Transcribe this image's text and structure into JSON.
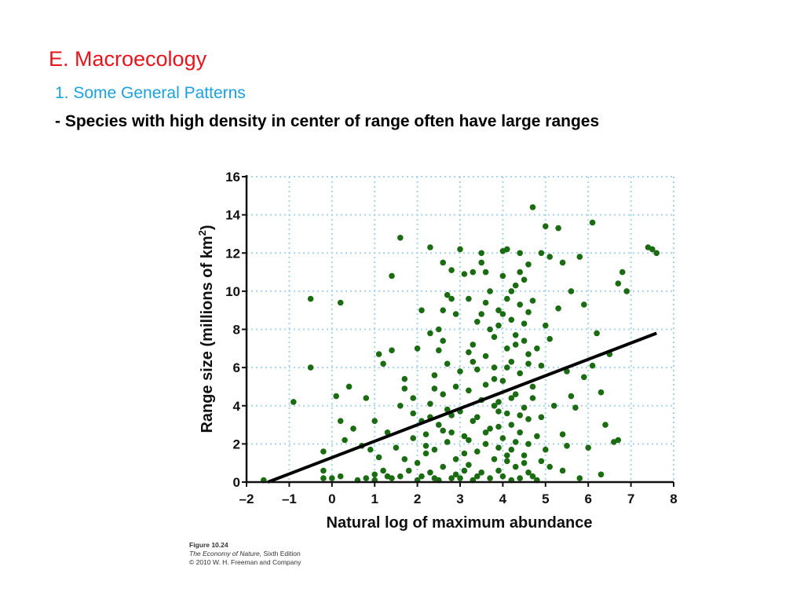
{
  "slide": {
    "title": "E. Macroecology",
    "subtitle": "1. Some General Patterns",
    "bullet": "- Species with high density in center of range often have large ranges"
  },
  "caption": {
    "figure": "Figure 10.24",
    "book": "The Economy of Nature,",
    "edition": " Sixth Edition",
    "copyright": "© 2010 W. H. Freeman and Company"
  },
  "colors": {
    "title": "#e8141b",
    "subtitle": "#1ba1dd",
    "points": "#1a6b12",
    "grid": "#a9d3ec",
    "regression": "#000000"
  },
  "chart_data": {
    "type": "scatter",
    "xlabel": "Natural log of maximum abundance",
    "ylabel": "Range size (millions of km",
    "ylabel_sup": "2",
    "ylabel_end": ")",
    "xlim": [
      -2,
      8
    ],
    "ylim": [
      0,
      16
    ],
    "xticks": [
      -2,
      -1,
      0,
      1,
      2,
      3,
      4,
      5,
      6,
      7,
      8
    ],
    "xtick_labels": [
      "–2",
      "–1",
      "0",
      "1",
      "2",
      "3",
      "4",
      "5",
      "6",
      "7",
      "8"
    ],
    "yticks": [
      0,
      2,
      4,
      6,
      8,
      10,
      12,
      14,
      16
    ],
    "ytick_labels": [
      "0",
      "2",
      "4",
      "6",
      "8",
      "10",
      "12",
      "14",
      "16"
    ],
    "grid": true,
    "regression_line": {
      "x": [
        -1.5,
        7.6
      ],
      "y": [
        0.0,
        7.8
      ]
    },
    "points": [
      [
        -1.6,
        0.1
      ],
      [
        -0.9,
        4.2
      ],
      [
        -0.5,
        9.6
      ],
      [
        -0.5,
        6.0
      ],
      [
        -0.2,
        1.6
      ],
      [
        0.1,
        4.5
      ],
      [
        0.2,
        9.4
      ],
      [
        0.2,
        3.2
      ],
      [
        -0.2,
        0.6
      ],
      [
        -0.2,
        0.2
      ],
      [
        0.4,
        5.0
      ],
      [
        0.5,
        2.8
      ],
      [
        0.8,
        4.4
      ],
      [
        0.9,
        1.7
      ],
      [
        1.0,
        0.4
      ],
      [
        1.1,
        6.7
      ],
      [
        1.2,
        6.2
      ],
      [
        1.3,
        0.3
      ],
      [
        1.4,
        6.9
      ],
      [
        1.4,
        10.8
      ],
      [
        1.6,
        12.8
      ],
      [
        1.7,
        4.9
      ],
      [
        1.9,
        4.4
      ],
      [
        2.0,
        7.0
      ],
      [
        2.1,
        9.0
      ],
      [
        2.3,
        12.3
      ],
      [
        2.5,
        8.0
      ],
      [
        2.6,
        11.5
      ],
      [
        2.7,
        9.8
      ],
      [
        2.8,
        11.1
      ],
      [
        3.0,
        12.2
      ],
      [
        3.1,
        10.9
      ],
      [
        3.2,
        9.6
      ],
      [
        3.3,
        6.3
      ],
      [
        3.5,
        11.5
      ],
      [
        3.6,
        11.0
      ],
      [
        4.0,
        12.1
      ],
      [
        4.4,
        12.0
      ],
      [
        4.6,
        11.4
      ],
      [
        4.7,
        14.4
      ],
      [
        4.9,
        12.0
      ],
      [
        5.0,
        13.4
      ],
      [
        5.1,
        11.8
      ],
      [
        5.3,
        13.3
      ],
      [
        5.4,
        11.5
      ],
      [
        5.6,
        10.0
      ],
      [
        5.8,
        11.8
      ],
      [
        6.1,
        13.6
      ],
      [
        6.2,
        7.8
      ],
      [
        6.3,
        4.7
      ],
      [
        6.5,
        6.7
      ],
      [
        6.7,
        10.4
      ],
      [
        6.8,
        11.0
      ],
      [
        6.9,
        10.0
      ],
      [
        7.4,
        12.3
      ],
      [
        7.5,
        12.2
      ],
      [
        7.6,
        12.0
      ],
      [
        6.3,
        0.4
      ],
      [
        6.7,
        2.2
      ],
      [
        5.8,
        0.2
      ],
      [
        5.5,
        1.9
      ],
      [
        6.0,
        1.8
      ],
      [
        6.4,
        3.0
      ],
      [
        6.6,
        2.1
      ],
      [
        5.9,
        5.5
      ],
      [
        5.0,
        8.2
      ],
      [
        5.1,
        7.5
      ],
      [
        5.3,
        9.1
      ],
      [
        5.6,
        4.5
      ],
      [
        5.2,
        4.0
      ],
      [
        5.5,
        5.8
      ],
      [
        5.9,
        9.3
      ],
      [
        5.4,
        2.5
      ],
      [
        5.7,
        3.9
      ],
      [
        5.4,
        0.6
      ],
      [
        5.1,
        0.8
      ],
      [
        6.1,
        6.1
      ],
      [
        4.3,
        10.3
      ],
      [
        4.5,
        10.6
      ],
      [
        4.1,
        9.6
      ],
      [
        4.4,
        9.3
      ],
      [
        4.0,
        8.8
      ],
      [
        4.2,
        8.5
      ],
      [
        4.6,
        8.9
      ],
      [
        3.9,
        9.0
      ],
      [
        4.3,
        7.7
      ],
      [
        4.5,
        7.4
      ],
      [
        4.1,
        7.0
      ],
      [
        4.6,
        6.7
      ],
      [
        4.2,
        6.3
      ],
      [
        3.8,
        6.0
      ],
      [
        4.4,
        5.7
      ],
      [
        4.0,
        5.3
      ],
      [
        4.7,
        5.0
      ],
      [
        4.3,
        4.6
      ],
      [
        3.9,
        4.2
      ],
      [
        4.5,
        3.9
      ],
      [
        4.1,
        3.6
      ],
      [
        4.6,
        3.3
      ],
      [
        4.2,
        3.0
      ],
      [
        4.4,
        2.6
      ],
      [
        4.0,
        2.3
      ],
      [
        4.6,
        2.0
      ],
      [
        4.2,
        1.7
      ],
      [
        4.5,
        1.4
      ],
      [
        4.1,
        1.1
      ],
      [
        4.3,
        0.8
      ],
      [
        4.6,
        0.5
      ],
      [
        4.0,
        0.3
      ],
      [
        3.5,
        8.8
      ],
      [
        3.7,
        8.0
      ],
      [
        3.3,
        7.2
      ],
      [
        3.6,
        6.6
      ],
      [
        3.4,
        5.9
      ],
      [
        3.8,
        5.4
      ],
      [
        3.2,
        4.8
      ],
      [
        3.5,
        4.3
      ],
      [
        3.9,
        3.7
      ],
      [
        3.3,
        3.2
      ],
      [
        3.7,
        2.8
      ],
      [
        3.1,
        2.4
      ],
      [
        3.6,
        2.0
      ],
      [
        3.4,
        1.6
      ],
      [
        3.8,
        1.2
      ],
      [
        3.2,
        0.9
      ],
      [
        3.5,
        0.5
      ],
      [
        3.0,
        0.2
      ],
      [
        3.3,
        0.1
      ],
      [
        3.7,
        0.2
      ],
      [
        2.9,
        5.0
      ],
      [
        3.0,
        3.7
      ],
      [
        2.8,
        2.6
      ],
      [
        3.1,
        1.5
      ],
      [
        2.5,
        6.9
      ],
      [
        2.7,
        6.2
      ],
      [
        2.4,
        5.6
      ],
      [
        2.6,
        4.6
      ],
      [
        2.3,
        4.1
      ],
      [
        2.8,
        3.5
      ],
      [
        2.5,
        3.0
      ],
      [
        2.2,
        2.5
      ],
      [
        2.7,
        2.1
      ],
      [
        2.4,
        1.7
      ],
      [
        2.9,
        1.2
      ],
      [
        2.6,
        0.8
      ],
      [
        2.3,
        0.5
      ],
      [
        2.8,
        0.2
      ],
      [
        2.5,
        0.1
      ],
      [
        2.1,
        0.3
      ],
      [
        2.0,
        1.0
      ],
      [
        2.2,
        1.5
      ],
      [
        1.9,
        2.3
      ],
      [
        2.1,
        3.2
      ],
      [
        1.8,
        0.6
      ],
      [
        1.6,
        0.3
      ],
      [
        1.7,
        1.2
      ],
      [
        1.5,
        1.8
      ],
      [
        1.4,
        0.2
      ],
      [
        1.2,
        0.6
      ],
      [
        1.0,
        0.1
      ],
      [
        0.8,
        0.2
      ],
      [
        0.6,
        0.1
      ],
      [
        0.2,
        0.3
      ],
      [
        0.0,
        0.2
      ],
      [
        1.1,
        1.3
      ],
      [
        4.8,
        7.0
      ],
      [
        4.9,
        6.1
      ],
      [
        4.7,
        4.4
      ],
      [
        4.9,
        3.4
      ],
      [
        4.8,
        2.4
      ],
      [
        4.9,
        1.1
      ],
      [
        4.7,
        0.3
      ],
      [
        5.0,
        1.7
      ],
      [
        4.4,
        11.0
      ],
      [
        4.2,
        10.0
      ],
      [
        3.9,
        8.2
      ],
      [
        4.5,
        8.3
      ],
      [
        4.3,
        7.2
      ],
      [
        4.1,
        6.0
      ],
      [
        3.8,
        7.6
      ],
      [
        4.6,
        6.2
      ],
      [
        4.2,
        4.4
      ],
      [
        4.4,
        3.5
      ],
      [
        3.9,
        2.9
      ],
      [
        4.3,
        2.1
      ],
      [
        3.9,
        1.8
      ],
      [
        4.1,
        1.4
      ],
      [
        4.5,
        1.0
      ],
      [
        4.4,
        0.2
      ],
      [
        3.6,
        9.4
      ],
      [
        3.4,
        8.4
      ],
      [
        3.2,
        6.8
      ],
      [
        3.6,
        5.1
      ],
      [
        3.8,
        4.0
      ],
      [
        3.4,
        3.4
      ],
      [
        3.6,
        2.6
      ],
      [
        3.2,
        2.2
      ],
      [
        2.9,
        8.8
      ],
      [
        2.6,
        7.4
      ],
      [
        3.0,
        5.8
      ],
      [
        2.4,
        4.9
      ],
      [
        2.7,
        3.8
      ],
      [
        2.3,
        3.4
      ],
      [
        2.6,
        2.7
      ],
      [
        2.2,
        1.9
      ],
      [
        2.6,
        9.0
      ],
      [
        2.8,
        9.6
      ],
      [
        3.7,
        10.0
      ],
      [
        3.3,
        11.0
      ],
      [
        4.0,
        10.8
      ],
      [
        4.7,
        9.5
      ],
      [
        4.1,
        12.2
      ],
      [
        3.5,
        12.0
      ],
      [
        3.1,
        0.6
      ],
      [
        2.9,
        0.4
      ],
      [
        3.4,
        0.3
      ],
      [
        3.9,
        0.6
      ],
      [
        4.2,
        0.1
      ],
      [
        4.8,
        0.1
      ],
      [
        2.4,
        0.2
      ],
      [
        2.0,
        0.1
      ],
      [
        1.3,
        2.6
      ],
      [
        1.6,
        4.0
      ],
      [
        1.9,
        3.6
      ],
      [
        2.3,
        7.8
      ],
      [
        1.7,
        5.4
      ],
      [
        0.7,
        1.9
      ],
      [
        0.3,
        2.2
      ],
      [
        1.0,
        3.2
      ]
    ]
  }
}
